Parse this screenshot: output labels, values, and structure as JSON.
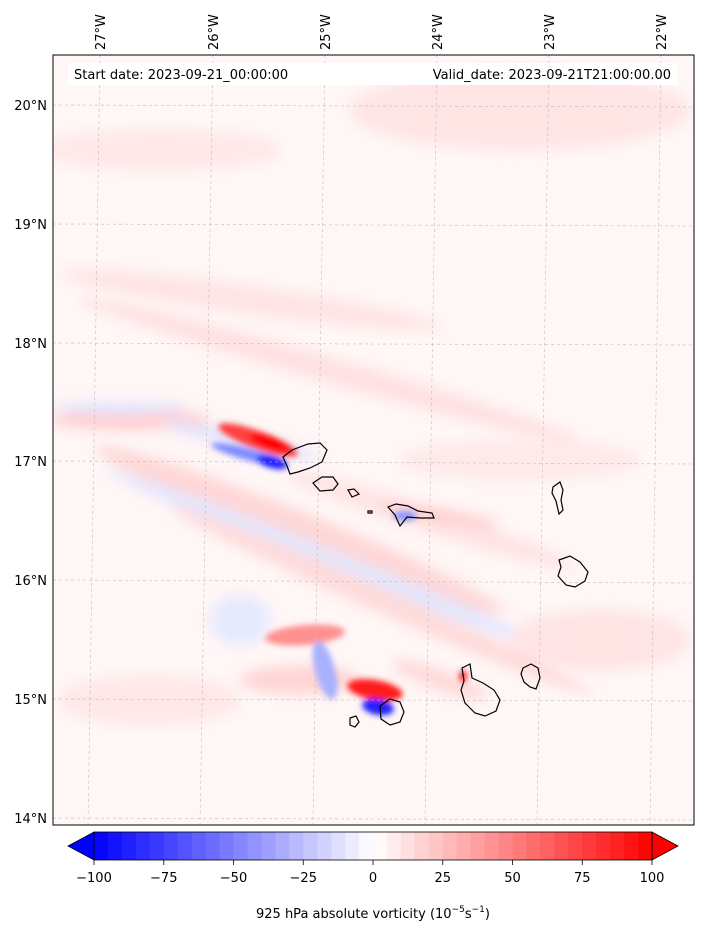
{
  "header": {
    "start_date": "Start date: 2023-09-21_00:00:00",
    "valid_date": "Valid_date: 2023-09-21T21:00:00.00"
  },
  "map": {
    "lon_ticks": [
      "27°W",
      "26°W",
      "25°W",
      "24°W",
      "23°W",
      "22°W"
    ],
    "lat_ticks": [
      "20°N",
      "19°N",
      "18°N",
      "17°N",
      "16°N",
      "15°N",
      "14°N"
    ],
    "gridlines": true
  },
  "colorbar": {
    "min": -100,
    "max": 100,
    "tick_values": [
      -100,
      -75,
      -50,
      -25,
      0,
      25,
      50,
      75,
      100
    ],
    "tick_labels": [
      "−100",
      "−75",
      "−50",
      "−25",
      "0",
      "25",
      "50",
      "75",
      "100"
    ],
    "extend": "both",
    "colormap": "bwr",
    "label_main": "925 hPa absolute vorticity (10",
    "label_sup1": "−5",
    "label_mid": "s",
    "label_sup2": "−1",
    "label_end": ")"
  },
  "colors": {
    "positive": "#ff0000",
    "negative": "#0000ff",
    "neutral": "#ffffff",
    "coastline": "#000000"
  }
}
